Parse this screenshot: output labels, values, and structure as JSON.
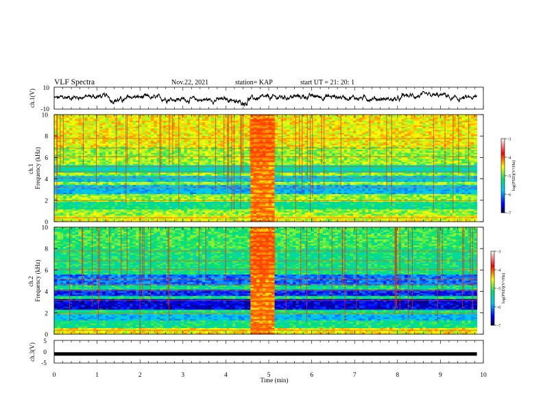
{
  "header": {
    "title": "VLF Spectra",
    "date": "Nov.22, 2021",
    "station": "station= KAP",
    "start": "start  UT =  21: 20: 1"
  },
  "chart_data": [
    {
      "type": "line",
      "name": "ch1-waveform",
      "ylabel": "ch.1(V)",
      "yticks": [
        "10",
        "-10"
      ],
      "ylim": [
        -10,
        10
      ],
      "xlim": [
        0,
        10
      ],
      "x_end": 9.85,
      "values_summary": "noisy waveform with level between about -6 and 6 V; dips to about -5 V near t=1.5 and t=4.3, peaks near 5 V around t=8.5-9"
    },
    {
      "type": "heatmap",
      "name": "ch1-spectrogram",
      "ylabel": "ch.1\nFrequency  (kHz)",
      "yticks": [
        "0",
        "2",
        "4",
        "6",
        "8",
        "10"
      ],
      "ylim": [
        0,
        10
      ],
      "xlim": [
        0,
        10
      ],
      "data_extent_min": [
        0,
        9.85
      ],
      "burst_interval_min": [
        4.55,
        5.15
      ],
      "colorbar": {
        "label": "log(PSD)(V²/Hz)",
        "ticks": [
          "-3",
          "-4",
          "-5",
          "-6",
          "-7"
        ],
        "range": [
          -7,
          -3
        ]
      }
    },
    {
      "type": "heatmap",
      "name": "ch2-spectrogram",
      "ylabel": "ch.2\nFrequency  (kHz)",
      "yticks": [
        "0",
        "2",
        "4",
        "6",
        "8",
        "10"
      ],
      "ylim": [
        0,
        10
      ],
      "xlim": [
        0,
        10
      ],
      "data_extent_min": [
        0,
        9.85
      ],
      "burst_interval_min": [
        4.55,
        5.15
      ],
      "colorbar": {
        "label": "log(PSD)(V²/Hz)",
        "ticks": [
          "-3",
          "-4",
          "-5",
          "-6",
          "-7"
        ],
        "range": [
          -7,
          -3
        ]
      }
    },
    {
      "type": "line",
      "name": "ch3-signal",
      "ylabel": "ch.3(V)",
      "yticks": [
        "5",
        "0",
        "-5"
      ],
      "ylim": [
        -5,
        5
      ],
      "xlim": [
        0,
        10
      ],
      "x_end": 9.85,
      "constant_value": -1
    }
  ],
  "xaxis": {
    "label": "Time  (min)",
    "ticks": [
      "0",
      "1",
      "2",
      "3",
      "4",
      "5",
      "6",
      "7",
      "8",
      "9",
      "10"
    ]
  },
  "colors": {
    "line": "#000000",
    "colormap": [
      "#2c2cff",
      "#00c8ff",
      "#00e070",
      "#ffff00",
      "#ff0000",
      "#ffffff"
    ]
  }
}
